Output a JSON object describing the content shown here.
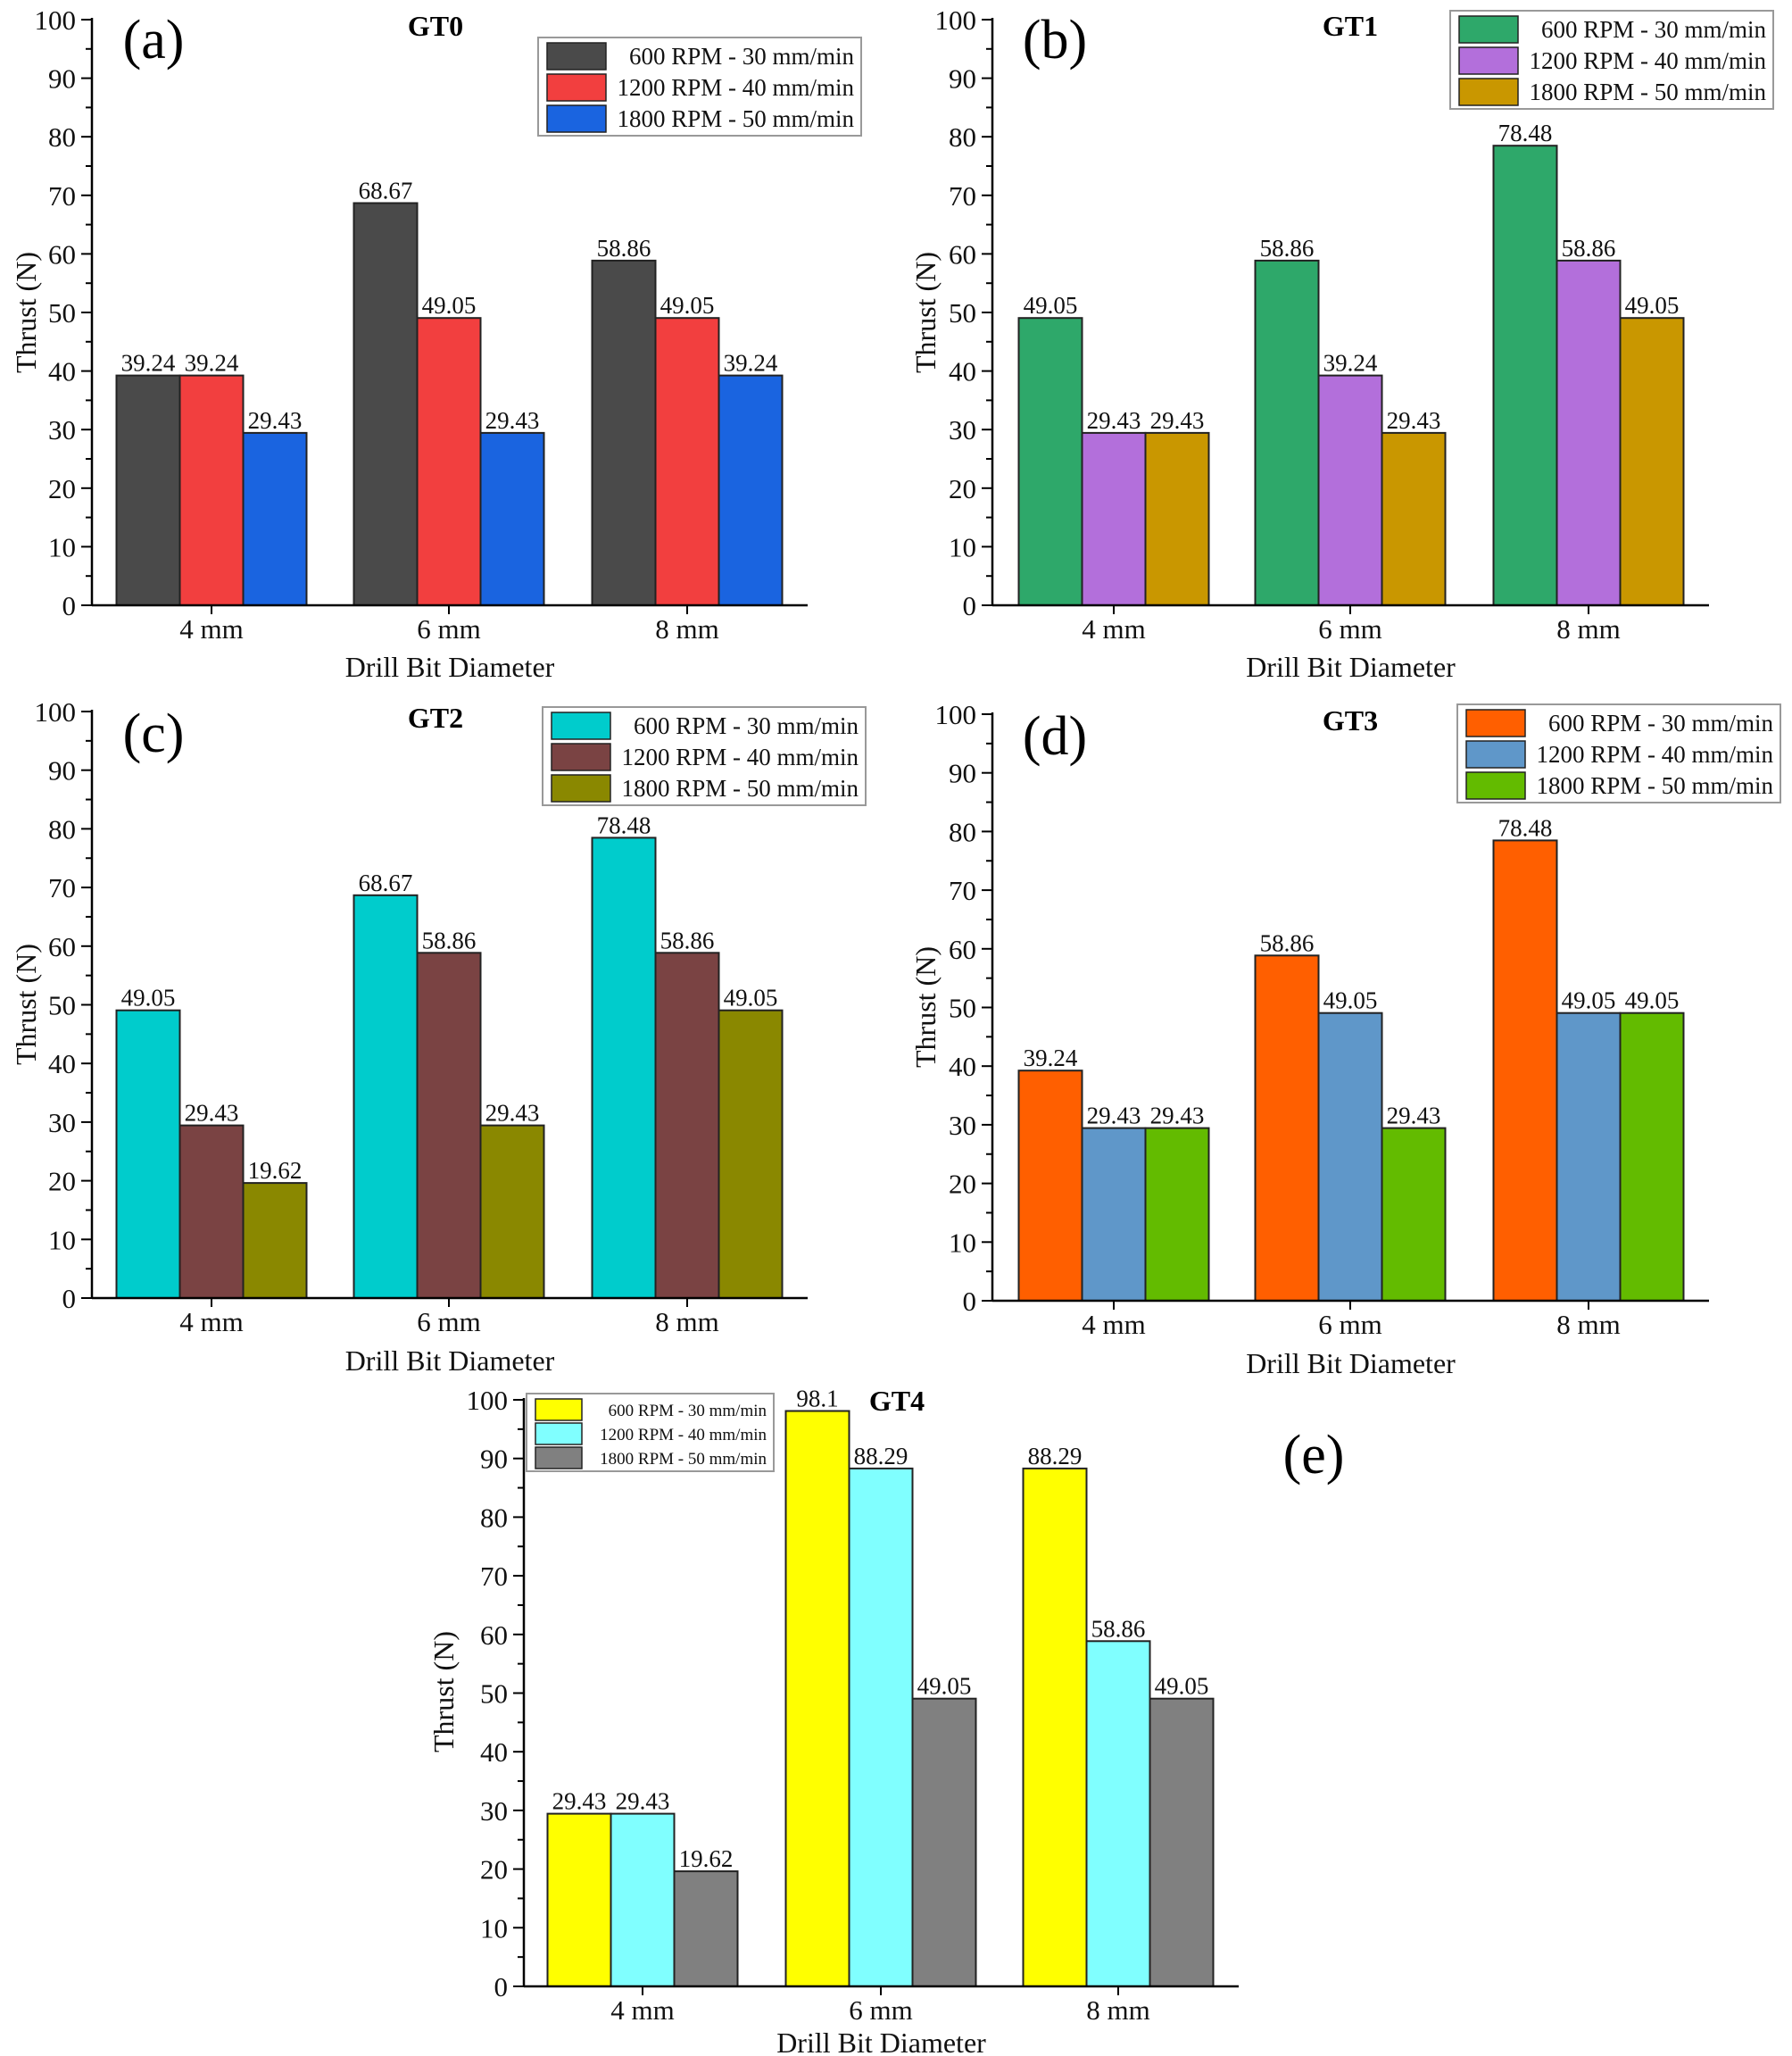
{
  "figure": {
    "y_axis_label": "Thrust (N)",
    "x_axis_label": "Drill Bit Diameter",
    "categories": [
      "4 mm",
      "6 mm",
      "8 mm"
    ],
    "series_names": [
      "600 RPM - 30 mm/min",
      "1200 RPM - 40 mm/min",
      "1800 RPM - 50 mm/min"
    ]
  },
  "chart_data": [
    {
      "type": "bar",
      "panel_label": "(a)",
      "title": "GT0",
      "xlabel": "Drill Bit Diameter",
      "ylabel": "Thrust (N)",
      "ylim": [
        0,
        100
      ],
      "yticks": [
        0,
        10,
        20,
        30,
        40,
        50,
        60,
        70,
        80,
        90,
        100
      ],
      "categories": [
        "4 mm",
        "6 mm",
        "8 mm"
      ],
      "legend_position": "top-right",
      "series": [
        {
          "name": "600 RPM - 30 mm/min",
          "color": "#4a4a4a",
          "values": [
            39.24,
            68.67,
            58.86
          ],
          "labels": [
            "39.24",
            "68.67",
            "58.86"
          ]
        },
        {
          "name": "1200 RPM - 40 mm/min",
          "color": "#f23f3f",
          "values": [
            39.24,
            49.05,
            49.05
          ],
          "labels": [
            "39.24",
            "49.05",
            "49.05"
          ]
        },
        {
          "name": "1800 RPM - 50 mm/min",
          "color": "#1a64e0",
          "values": [
            29.43,
            29.43,
            39.24
          ],
          "labels": [
            "29.43",
            "29.43",
            "39.24"
          ]
        }
      ]
    },
    {
      "type": "bar",
      "panel_label": "(b)",
      "title": "GT1",
      "xlabel": "Drill Bit Diameter",
      "ylabel": "Thrust (N)",
      "ylim": [
        0,
        100
      ],
      "yticks": [
        0,
        10,
        20,
        30,
        40,
        50,
        60,
        70,
        80,
        90,
        100
      ],
      "categories": [
        "4 mm",
        "6 mm",
        "8 mm"
      ],
      "legend_position": "top-right",
      "series": [
        {
          "name": "600 RPM - 30 mm/min",
          "color": "#2ea86a",
          "values": [
            49.05,
            58.86,
            78.48
          ],
          "labels": [
            "49.05",
            "58.86",
            "78.48"
          ]
        },
        {
          "name": "1200 RPM - 40 mm/min",
          "color": "#b36fdb",
          "values": [
            29.43,
            39.24,
            58.86
          ],
          "labels": [
            "29.43",
            "39.24",
            "58.86"
          ]
        },
        {
          "name": "1800 RPM - 50 mm/min",
          "color": "#c99700",
          "values": [
            29.43,
            29.43,
            49.05
          ],
          "labels": [
            "29.43",
            "29.43",
            "49.05"
          ]
        }
      ]
    },
    {
      "type": "bar",
      "panel_label": "(c)",
      "title": "GT2",
      "xlabel": "Drill Bit Diameter",
      "ylabel": "Thrust (N)",
      "ylim": [
        0,
        100
      ],
      "yticks": [
        0,
        10,
        20,
        30,
        40,
        50,
        60,
        70,
        80,
        90,
        100
      ],
      "categories": [
        "4 mm",
        "6 mm",
        "8 mm"
      ],
      "legend_position": "top-right",
      "series": [
        {
          "name": "600 RPM - 30 mm/min",
          "color": "#00cccc",
          "values": [
            49.05,
            68.67,
            78.48
          ],
          "labels": [
            "49.05",
            "68.67",
            "78.48"
          ]
        },
        {
          "name": "1200 RPM - 40 mm/min",
          "color": "#7a4343",
          "values": [
            29.43,
            58.86,
            58.86
          ],
          "labels": [
            "29.43",
            "58.86",
            "58.86"
          ]
        },
        {
          "name": "1800 RPM - 50 mm/min",
          "color": "#8a8800",
          "values": [
            19.62,
            29.43,
            49.05
          ],
          "labels": [
            "19.62",
            "29.43",
            "49.05"
          ]
        }
      ]
    },
    {
      "type": "bar",
      "panel_label": "(d)",
      "title": "GT3",
      "xlabel": "Drill Bit Diameter",
      "ylabel": "Thrust (N)",
      "ylim": [
        0,
        100
      ],
      "yticks": [
        0,
        10,
        20,
        30,
        40,
        50,
        60,
        70,
        80,
        90,
        100
      ],
      "categories": [
        "4 mm",
        "6 mm",
        "8 mm"
      ],
      "legend_position": "top-right",
      "series": [
        {
          "name": "600 RPM - 30 mm/min",
          "color": "#ff5f00",
          "values": [
            39.24,
            58.86,
            78.48
          ],
          "labels": [
            "39.24",
            "58.86",
            "78.48"
          ]
        },
        {
          "name": "1200 RPM - 40 mm/min",
          "color": "#5f97c9",
          "values": [
            29.43,
            49.05,
            49.05
          ],
          "labels": [
            "29.43",
            "49.05",
            "49.05"
          ]
        },
        {
          "name": "1800 RPM - 50 mm/min",
          "color": "#63bb00",
          "values": [
            29.43,
            29.43,
            49.05
          ],
          "labels": [
            "29.43",
            "29.43",
            "49.05"
          ]
        }
      ]
    },
    {
      "type": "bar",
      "panel_label": "(e)",
      "title": "GT4",
      "xlabel": "Drill Bit Diameter",
      "ylabel": "Thrust (N)",
      "ylim": [
        0,
        100
      ],
      "yticks": [
        0,
        10,
        20,
        30,
        40,
        50,
        60,
        70,
        80,
        90,
        100
      ],
      "categories": [
        "4 mm",
        "6 mm",
        "8 mm"
      ],
      "legend_position": "top-left",
      "series": [
        {
          "name": "600 RPM - 30 mm/min",
          "color": "#ffff00",
          "values": [
            29.43,
            98.1,
            88.29
          ],
          "labels": [
            "29.43",
            "98.1",
            "88.29"
          ]
        },
        {
          "name": "1200 RPM - 40 mm/min",
          "color": "#80ffff",
          "values": [
            29.43,
            88.29,
            58.86
          ],
          "labels": [
            "29.43",
            "88.29",
            "58.86"
          ]
        },
        {
          "name": "1800 RPM - 50 mm/min",
          "color": "#808080",
          "values": [
            19.62,
            49.05,
            49.05
          ],
          "labels": [
            "19.62",
            "49.05",
            "49.05"
          ]
        }
      ]
    }
  ]
}
